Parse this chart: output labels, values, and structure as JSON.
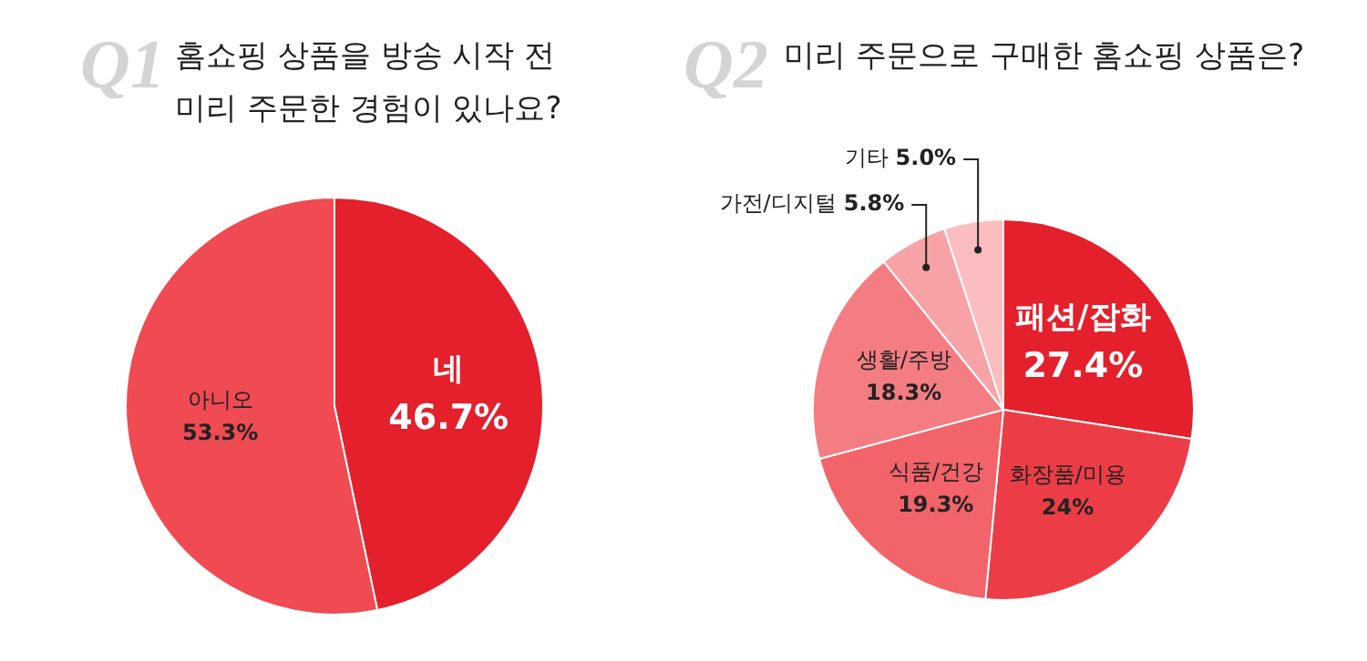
{
  "chart_data": [
    {
      "type": "pie",
      "title": "Q1",
      "subtitle": "홈쇼핑 상품을 방송 시작 전\n미리 주문한 경험이 있나요?",
      "categories": [
        "네",
        "아니오"
      ],
      "values": [
        46.7,
        53.3
      ],
      "colors": [
        "#e3202b",
        "#f04a52"
      ],
      "value_labels": [
        "46.7%",
        "53.3%"
      ],
      "legend": false
    },
    {
      "type": "pie",
      "title": "Q2",
      "subtitle": "미리 주문으로 구매한 홈쇼핑 상품은?",
      "categories": [
        "패션/잡화",
        "화장품/미용",
        "식품/건강",
        "생활/주방",
        "가전/디지털",
        "기타"
      ],
      "values": [
        27.4,
        24,
        19.3,
        18.3,
        5.8,
        5.0
      ],
      "colors": [
        "#e3202b",
        "#ec3d46",
        "#f2636a",
        "#f47d83",
        "#f7a2a6",
        "#fbbdc0"
      ],
      "value_labels": [
        "27.4%",
        "24%",
        "19.3%",
        "18.3%",
        "5.8%",
        "5.0%"
      ],
      "legend": false
    }
  ]
}
